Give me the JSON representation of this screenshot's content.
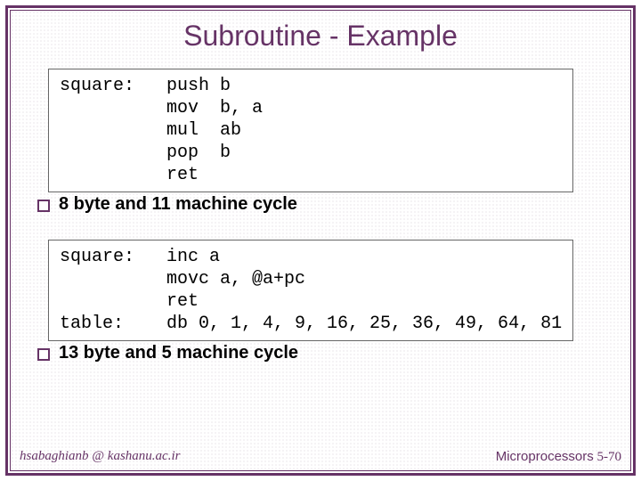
{
  "title": "Subroutine - Example",
  "code1": {
    "lines": [
      {
        "label": "square:",
        "instr": "push b"
      },
      {
        "label": "",
        "instr": "mov  b, a"
      },
      {
        "label": "",
        "instr": "mul  ab"
      },
      {
        "label": "",
        "instr": "pop  b"
      },
      {
        "label": "",
        "instr": "ret"
      }
    ]
  },
  "bullet1": "8 byte and 11 machine cycle",
  "code2": {
    "lines": [
      {
        "label": "square:",
        "instr": "inc a"
      },
      {
        "label": "",
        "instr": "movc a, @a+pc"
      },
      {
        "label": "",
        "instr": "ret"
      },
      {
        "label": "table:",
        "instr": "db 0, 1, 4, 9, 16, 25, 36, 49, 64, 81"
      }
    ]
  },
  "bullet2": "13 byte and 5 machine cycle",
  "footer": {
    "left": "hsabaghianb @ kashanu.ac.ir",
    "right_label": "Microprocessors",
    "right_page": "5-70"
  },
  "colors": {
    "frame": "#663366",
    "text": "#000000",
    "accent": "#663366"
  }
}
